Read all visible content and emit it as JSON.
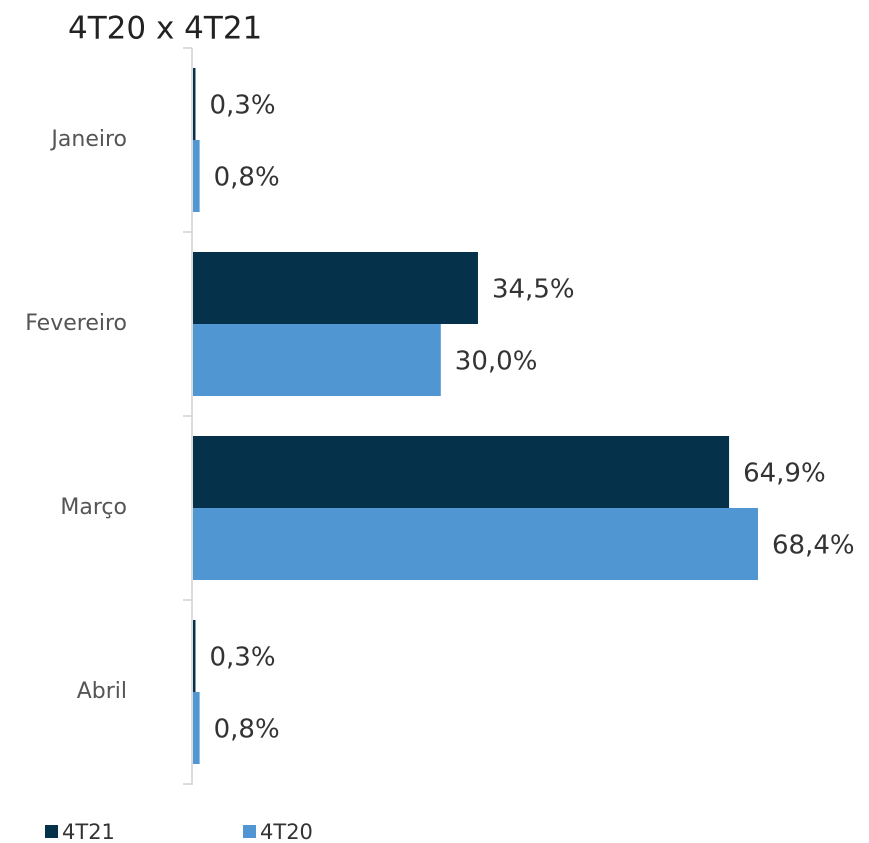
{
  "chart_data": {
    "type": "barh",
    "title": "4T20 x 4T21",
    "categories": [
      "Janeiro",
      "Fevereiro",
      "Março",
      "Abril"
    ],
    "series": [
      {
        "name": "4T21",
        "color": "#06314a",
        "values": [
          0.3,
          34.5,
          64.9,
          0.3
        ],
        "value_labels": [
          "0,3%",
          "34,5%",
          "64,9%",
          "0,3%"
        ]
      },
      {
        "name": "4T20",
        "color": "#5096d2",
        "values": [
          0.8,
          30.0,
          68.4,
          0.8
        ],
        "value_labels": [
          "0,8%",
          "30,0%",
          "68,4%",
          "0,8%"
        ]
      }
    ]
  }
}
